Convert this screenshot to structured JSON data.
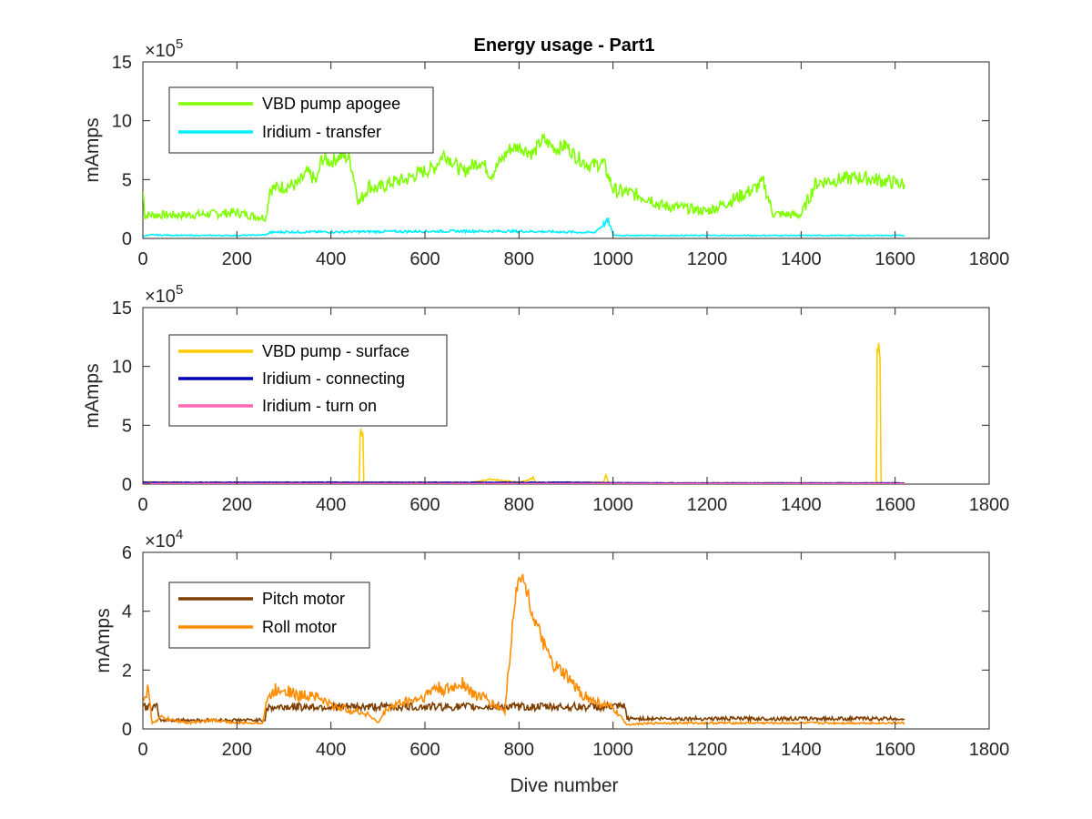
{
  "figure": {
    "title": "Energy usage - Part1",
    "xlabel": "Dive number"
  },
  "colors": {
    "vbd_apogee": "#80ff00",
    "iridium_transfer": "#00eeff",
    "vbd_surface": "#ffcc00",
    "iridium_connecting": "#0000b3",
    "iridium_turn_on": "#ff66b2",
    "pitch_motor": "#7f3f00",
    "roll_motor": "#ff8c00"
  },
  "chart_data": [
    {
      "type": "line",
      "title": "Energy usage - Part1",
      "xlabel": "",
      "ylabel": "mAmps",
      "xlim": [
        0,
        1800
      ],
      "ylim": [
        0,
        1500000
      ],
      "xticks": [
        0,
        200,
        400,
        600,
        800,
        1000,
        1200,
        1400,
        1600,
        1800
      ],
      "yticks": [
        0,
        5,
        10,
        15
      ],
      "exponent_label": "×10^5",
      "exponent_base": "×10",
      "exponent_power": "5",
      "legend_position": "top-left",
      "grid": false,
      "series": [
        {
          "name": "VBD pump apogee",
          "color": "#80ff00",
          "x": [
            0,
            5,
            10,
            40,
            100,
            150,
            200,
            250,
            262,
            270,
            300,
            330,
            350,
            370,
            380,
            400,
            420,
            440,
            460,
            480,
            500,
            530,
            560,
            590,
            620,
            640,
            660,
            680,
            700,
            720,
            740,
            760,
            780,
            800,
            830,
            850,
            880,
            900,
            920,
            950,
            980,
            1000,
            1010,
            1030,
            1050,
            1080,
            1100,
            1150,
            1200,
            1250,
            1300,
            1320,
            1340,
            1380,
            1400,
            1430,
            1440,
            1480,
            1520,
            1560,
            1590,
            1620
          ],
          "y": [
            400000,
            180000,
            200000,
            200000,
            200000,
            210000,
            220000,
            180000,
            180000,
            420000,
            440000,
            460000,
            560000,
            480000,
            680000,
            650000,
            700000,
            680000,
            300000,
            450000,
            420000,
            480000,
            500000,
            560000,
            600000,
            720000,
            650000,
            560000,
            620000,
            660000,
            540000,
            650000,
            760000,
            780000,
            720000,
            840000,
            760000,
            790000,
            700000,
            620000,
            640000,
            420000,
            400000,
            390000,
            370000,
            340000,
            280000,
            260000,
            230000,
            320000,
            420000,
            480000,
            210000,
            200000,
            200000,
            460000,
            480000,
            500000,
            520000,
            500000,
            480000,
            460000
          ]
        },
        {
          "name": "Iridium - transfer",
          "color": "#00eeff",
          "x": [
            0,
            20,
            100,
            200,
            262,
            270,
            300,
            400,
            500,
            600,
            700,
            800,
            900,
            960,
            980,
            990,
            1000,
            1020,
            1030,
            1100,
            1200,
            1300,
            1400,
            1500,
            1600,
            1620
          ],
          "y": [
            20000,
            30000,
            25000,
            25000,
            30000,
            50000,
            55000,
            55000,
            58000,
            60000,
            62000,
            60000,
            55000,
            50000,
            120000,
            150000,
            30000,
            25000,
            25000,
            25000,
            25000,
            25000,
            25000,
            25000,
            25000,
            25000
          ]
        }
      ]
    },
    {
      "type": "line",
      "title": "",
      "xlabel": "",
      "ylabel": "mAmps",
      "xlim": [
        0,
        1800
      ],
      "ylim": [
        0,
        1500000
      ],
      "xticks": [
        0,
        200,
        400,
        600,
        800,
        1000,
        1200,
        1400,
        1600,
        1800
      ],
      "yticks": [
        0,
        5,
        10,
        15
      ],
      "exponent_label": "×10^5",
      "exponent_base": "×10",
      "exponent_power": "5",
      "legend_position": "top-left",
      "grid": false,
      "series": [
        {
          "name": "VBD pump - surface",
          "color": "#ffcc00",
          "x": [
            0,
            100,
            200,
            300,
            400,
            460,
            462,
            465,
            468,
            470,
            600,
            700,
            740,
            800,
            825,
            830,
            835,
            900,
            980,
            985,
            990,
            1000,
            1200,
            1400,
            1560,
            1562,
            1565,
            1568,
            1570,
            1620
          ],
          "y": [
            20000,
            15000,
            15000,
            15000,
            15000,
            15000,
            400000,
            440000,
            420000,
            15000,
            15000,
            15000,
            40000,
            15000,
            40000,
            60000,
            15000,
            15000,
            15000,
            80000,
            15000,
            10000,
            10000,
            10000,
            10000,
            1150000,
            1190000,
            1100000,
            10000,
            10000
          ]
        },
        {
          "name": "Iridium - connecting",
          "color": "#0000b3",
          "x": [
            0,
            100,
            200,
            300,
            400,
            500,
            600,
            700,
            800,
            900,
            1000,
            1100,
            1200,
            1300,
            1400,
            1500,
            1620
          ],
          "y": [
            15000,
            15000,
            15000,
            15000,
            15000,
            15000,
            15000,
            15000,
            15000,
            15000,
            12000,
            10000,
            10000,
            10000,
            10000,
            10000,
            10000
          ]
        },
        {
          "name": "Iridium - turn on",
          "color": "#ff66b2",
          "x": [
            0,
            100,
            200,
            300,
            400,
            500,
            600,
            700,
            800,
            900,
            1000,
            1100,
            1200,
            1300,
            1400,
            1500,
            1620
          ],
          "y": [
            5000,
            5000,
            5000,
            5000,
            5000,
            5000,
            5000,
            5000,
            5000,
            5000,
            5000,
            5000,
            5000,
            5000,
            5000,
            5000,
            5000
          ]
        }
      ]
    },
    {
      "type": "line",
      "title": "",
      "xlabel": "Dive number",
      "ylabel": "mAmps",
      "xlim": [
        0,
        1800
      ],
      "ylim": [
        0,
        60000
      ],
      "xticks": [
        0,
        200,
        400,
        600,
        800,
        1000,
        1200,
        1400,
        1600,
        1800
      ],
      "yticks": [
        0,
        2,
        4,
        6
      ],
      "exponent_label": "×10^4",
      "exponent_base": "×10",
      "exponent_power": "4",
      "legend_position": "top-left",
      "grid": false,
      "series": [
        {
          "name": "Pitch motor",
          "color": "#7f3f00",
          "x": [
            0,
            30,
            35,
            100,
            200,
            260,
            262,
            300,
            400,
            500,
            600,
            700,
            800,
            900,
            1000,
            1025,
            1030,
            1100,
            1200,
            1300,
            1400,
            1500,
            1620
          ],
          "y": [
            7500,
            7500,
            3000,
            3000,
            3000,
            3000,
            7000,
            7500,
            7500,
            7500,
            7500,
            7500,
            7500,
            7500,
            7500,
            7500,
            3500,
            3500,
            3500,
            3500,
            3500,
            3500,
            3500
          ]
        },
        {
          "name": "Roll motor",
          "color": "#ff8c00",
          "x": [
            0,
            10,
            20,
            40,
            60,
            100,
            150,
            200,
            255,
            262,
            280,
            300,
            330,
            360,
            400,
            450,
            480,
            500,
            520,
            550,
            580,
            600,
            620,
            650,
            680,
            700,
            720,
            750,
            770,
            790,
            800,
            810,
            820,
            830,
            850,
            870,
            900,
            920,
            950,
            1000,
            1030,
            1100,
            1200,
            1300,
            1400,
            1500,
            1620
          ],
          "y": [
            8000,
            14000,
            2000,
            4000,
            3000,
            2000,
            3000,
            2000,
            2000,
            9000,
            13000,
            14000,
            11000,
            12000,
            8000,
            6000,
            5000,
            2000,
            7000,
            9000,
            10000,
            11000,
            14000,
            13000,
            16000,
            12000,
            11000,
            8000,
            6000,
            42000,
            53000,
            50000,
            45000,
            38000,
            30000,
            22000,
            18000,
            14000,
            10000,
            7000,
            1500,
            2000,
            2000,
            2000,
            2000,
            2000,
            2000
          ]
        }
      ]
    }
  ]
}
